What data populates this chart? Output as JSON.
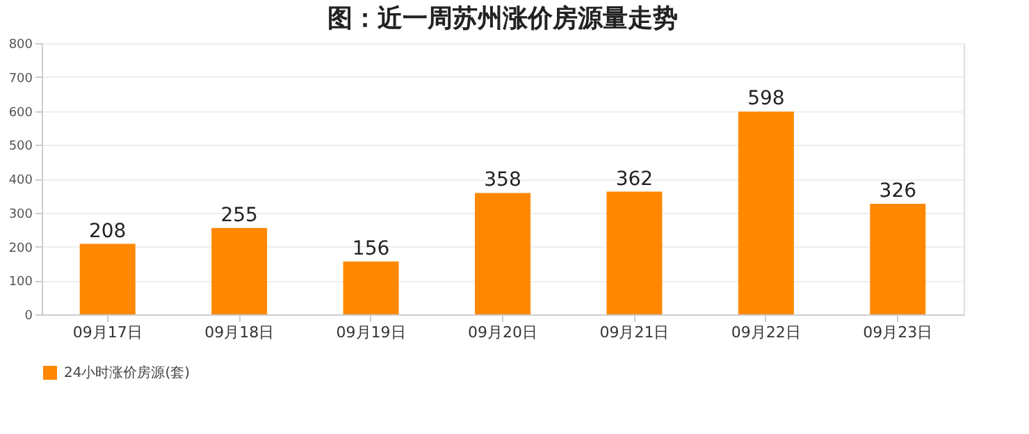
{
  "chart_data": {
    "type": "bar",
    "title": "图：近一周苏州涨价房源量走势",
    "categories": [
      "09月17日",
      "09月18日",
      "09月19日",
      "09月20日",
      "09月21日",
      "09月22日",
      "09月23日"
    ],
    "series": [
      {
        "name": "24小时涨价房源(套)",
        "color": "#ff8800",
        "values": [
          208,
          255,
          156,
          358,
          362,
          598,
          326
        ]
      }
    ],
    "ylim": [
      0,
      800
    ],
    "yticks": [
      0,
      100,
      200,
      300,
      400,
      500,
      600,
      700,
      800
    ],
    "grid": "y",
    "legend": "bottom",
    "data_labels": true
  }
}
